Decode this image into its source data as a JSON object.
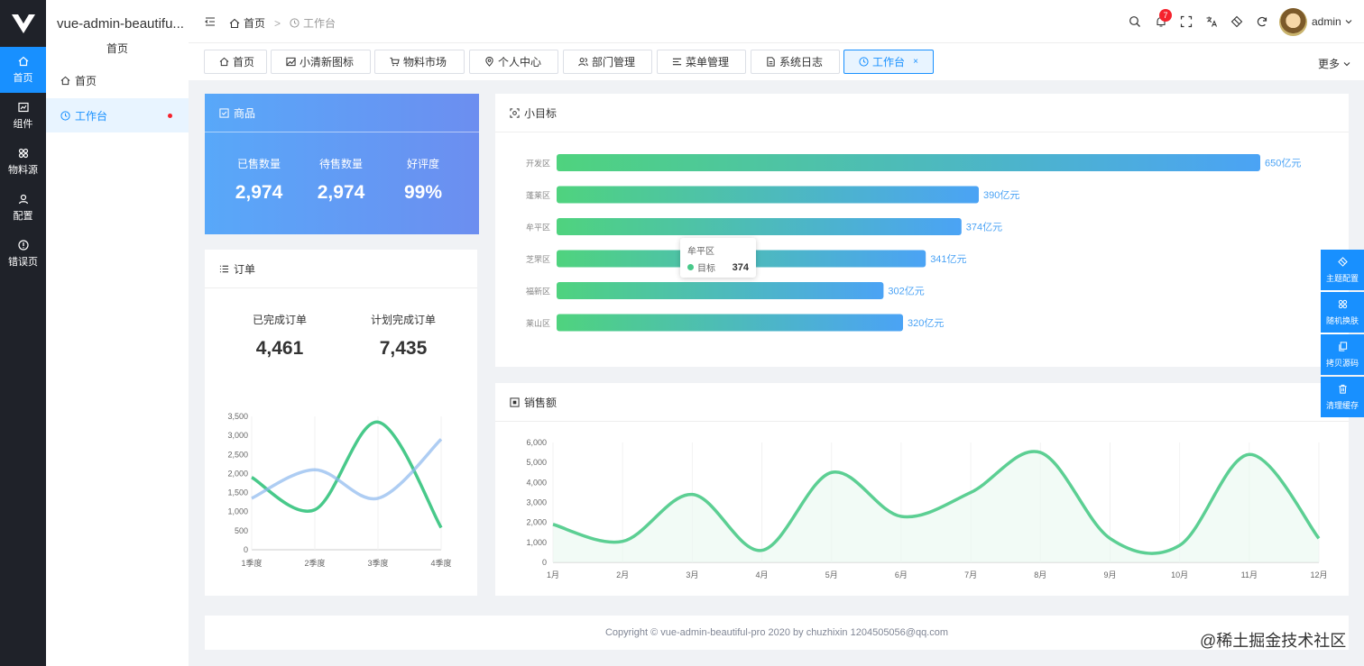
{
  "app": {
    "title": "vue-admin-beautifu...",
    "subtitle": "首页"
  },
  "leftnav": [
    {
      "label": "首页",
      "icon": "home-icon"
    },
    {
      "label": "组件",
      "icon": "component-icon"
    },
    {
      "label": "物料源",
      "icon": "material-icon"
    },
    {
      "label": "配置",
      "icon": "config-icon"
    },
    {
      "label": "错误页",
      "icon": "error-icon"
    }
  ],
  "sidemenu": [
    {
      "label": "首页",
      "icon": "home-icon"
    },
    {
      "label": "工作台",
      "icon": "clock-icon"
    }
  ],
  "breadcrumb": {
    "home": "首页",
    "sep": ">",
    "current": "工作台"
  },
  "header": {
    "notification_count": "7",
    "username": "admin"
  },
  "tabs": [
    {
      "label": "首页",
      "icon": "home-icon"
    },
    {
      "label": "小清新图标",
      "icon": "image-icon"
    },
    {
      "label": "物料市场",
      "icon": "cart-icon"
    },
    {
      "label": "个人中心",
      "icon": "location-icon"
    },
    {
      "label": "部门管理",
      "icon": "users-icon"
    },
    {
      "label": "菜单管理",
      "icon": "menu-icon"
    },
    {
      "label": "系统日志",
      "icon": "file-icon"
    },
    {
      "label": "工作台",
      "icon": "clock-icon",
      "close": "×"
    }
  ],
  "tabs_more": "更多",
  "goods": {
    "title": "商品",
    "stats": [
      {
        "label": "已售数量",
        "value": "2,974"
      },
      {
        "label": "待售数量",
        "value": "2,974"
      },
      {
        "label": "好评度",
        "value": "99%"
      }
    ]
  },
  "orders": {
    "title": "订单",
    "stats": [
      {
        "label": "已完成订单",
        "value": "4,461"
      },
      {
        "label": "计划完成订单",
        "value": "7,435"
      }
    ]
  },
  "target": {
    "title": "小目标"
  },
  "sales": {
    "title": "销售额"
  },
  "tooltip": {
    "title": "牟平区",
    "series": "目标",
    "value": "374"
  },
  "rightpanel": [
    {
      "label": "主题配置",
      "icon": "theme-icon"
    },
    {
      "label": "随机换肤",
      "icon": "shuffle-icon"
    },
    {
      "label": "拷贝源码",
      "icon": "copy-icon"
    },
    {
      "label": "清理缓存",
      "icon": "trash-icon"
    }
  ],
  "footer": "Copyright © vue-admin-beautiful-pro 2020 by chuzhixin 1204505056@qq.com",
  "watermark": "@稀土掘金技术社区",
  "chart_data": [
    {
      "type": "line",
      "categories": [
        "1季度",
        "2季度",
        "3季度",
        "4季度"
      ],
      "ylim": [
        0,
        3500
      ],
      "yticks": [
        0,
        500,
        1000,
        1500,
        2000,
        2500,
        3000,
        3500
      ],
      "series": [
        {
          "values": [
            1900,
            1050,
            3350,
            580
          ],
          "color": "#48c98a"
        },
        {
          "values": [
            1350,
            2100,
            1350,
            2900
          ],
          "color": "#8bb8ee"
        }
      ],
      "smooth": true
    },
    {
      "type": "bar",
      "orientation": "horizontal",
      "categories": [
        "开发区",
        "蓬莱区",
        "牟平区",
        "芝罘区",
        "福新区",
        "莱山区"
      ],
      "values": [
        650,
        390,
        374,
        341,
        302,
        320
      ],
      "label_suffix": "亿元",
      "xlim": [
        0,
        680
      ]
    },
    {
      "type": "area",
      "categories": [
        "1月",
        "2月",
        "3月",
        "4月",
        "5月",
        "6月",
        "7月",
        "8月",
        "9月",
        "10月",
        "11月",
        "12月"
      ],
      "ylim": [
        0,
        6000
      ],
      "yticks": [
        0,
        1000,
        2000,
        3000,
        4000,
        5000,
        6000
      ],
      "values": [
        1900,
        1050,
        3400,
        600,
        4500,
        2300,
        3500,
        5500,
        1200,
        850,
        5400,
        1200
      ],
      "smooth": true
    }
  ]
}
